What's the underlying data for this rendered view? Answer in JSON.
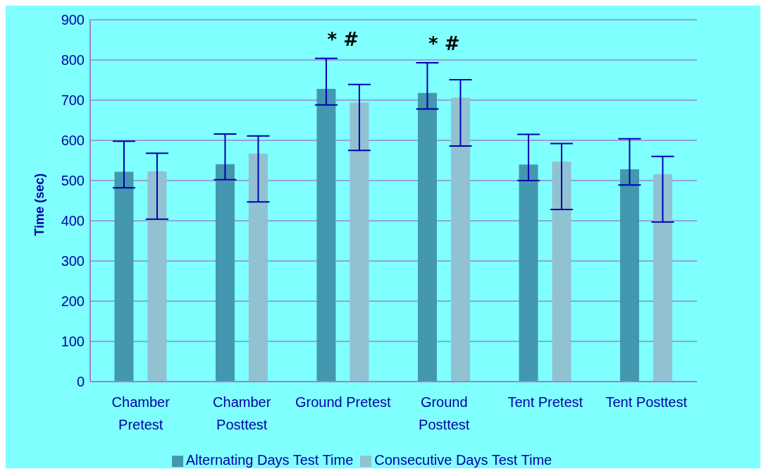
{
  "chart_data": {
    "type": "bar",
    "ylabel": "Time (sec)",
    "categories": [
      "Chamber Pretest",
      "Chamber Posttest",
      "Ground Pretest",
      "Ground Posttest",
      "Tent Pretest",
      "Tent Posttest"
    ],
    "series": [
      {
        "name": "Alternating Days Test Time",
        "color": "#4397ae",
        "values": [
          522,
          541,
          728,
          718,
          540,
          528
        ],
        "errors": [
          [
            482,
            598
          ],
          [
            502,
            616
          ],
          [
            688,
            804
          ],
          [
            678,
            793
          ],
          [
            500,
            615
          ],
          [
            489,
            604
          ]
        ]
      },
      {
        "name": "Consecutive Days Test Time",
        "color": "#92c1d1",
        "values": [
          523,
          567,
          694,
          706,
          547,
          516
        ],
        "errors": [
          [
            404,
            568
          ],
          [
            447,
            611
          ],
          [
            575,
            739
          ],
          [
            586,
            751
          ],
          [
            428,
            592
          ],
          [
            397,
            560
          ]
        ]
      }
    ],
    "ylim": [
      0,
      900
    ],
    "yticks": [
      0,
      100,
      200,
      300,
      400,
      500,
      600,
      700,
      800,
      900
    ],
    "grid": "y",
    "legend": "bottom",
    "annotations": [
      "* #",
      "* #"
    ]
  }
}
